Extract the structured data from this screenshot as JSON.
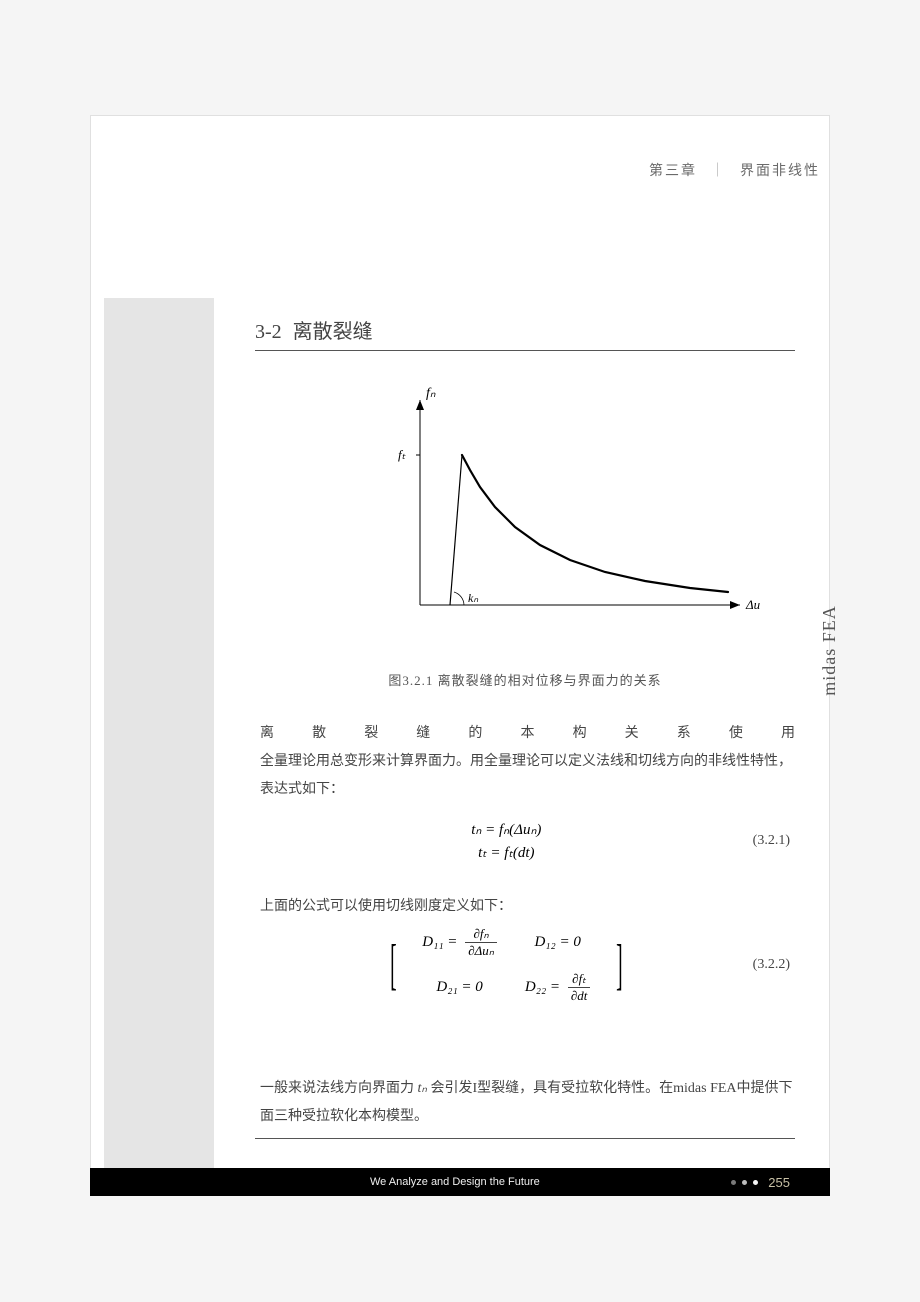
{
  "header": {
    "chapter_label": "第三章",
    "separator": "｜",
    "chapter_title": "界面非线性"
  },
  "side_label": "midas FEA",
  "section": {
    "number": "3-2",
    "title": "离散裂缝"
  },
  "figure": {
    "type": "line",
    "y_axis_label": "fₙ",
    "x_axis_label": "Δuₙ",
    "y_intercept_label": "fₜ",
    "slope_label": "kₙ",
    "line_color": "#000000",
    "axis_color": "#000000",
    "line_width": 2.2,
    "axis_width": 1.0,
    "xlim": [
      0,
      320
    ],
    "ylim": [
      0,
      190
    ],
    "initial_line": {
      "x0": 30,
      "y0": 0,
      "x1": 42,
      "y1": 150
    },
    "curve_points": [
      [
        42,
        150
      ],
      [
        50,
        135
      ],
      [
        60,
        118
      ],
      [
        75,
        98
      ],
      [
        95,
        78
      ],
      [
        120,
        60
      ],
      [
        150,
        45
      ],
      [
        185,
        33
      ],
      [
        225,
        24
      ],
      [
        270,
        17
      ],
      [
        308,
        13
      ]
    ],
    "caption": "图3.2.1  离散裂缝的相对位移与界面力的关系"
  },
  "body": {
    "p1_line1": "离散裂缝的本构关系使用",
    "p1_line2": "全量理论用总变形来计算界面力。用全量理论可以定义法线和切线方向的非线性特性，",
    "p1_line3": "表达式如下：",
    "eq1": {
      "line1": "tₙ = fₙ(Δuₙ)",
      "line2": "tₜ = fₜ(dt)",
      "num": "(3.2.1)"
    },
    "p2": "上面的公式可以使用切线刚度定义如下：",
    "eq2": {
      "m11_lhs": "D₁₁ =",
      "m11_rhs_top": "∂fₙ",
      "m11_rhs_bot": "∂Δuₙ",
      "m12": "D₁₂ = 0",
      "m21": "D₂₁ = 0",
      "m22_lhs": "D₂₂ =",
      "m22_rhs_top": "∂fₜ",
      "m22_rhs_bot": "∂dt",
      "num": "(3.2.2)"
    },
    "p3_a": "一般来说法线方向界面力 ",
    "p3_var": "tₙ",
    "p3_b": " 会引发I型裂缝，具有受拉软化特性。在midas FEA中提供下面三种受拉软化本构模型。"
  },
  "footer": {
    "tagline": "We Analyze and Design the Future",
    "page_number": "255",
    "dot_colors": [
      "#7a7a7a",
      "#bcbcbc",
      "#f5f5f5"
    ]
  }
}
